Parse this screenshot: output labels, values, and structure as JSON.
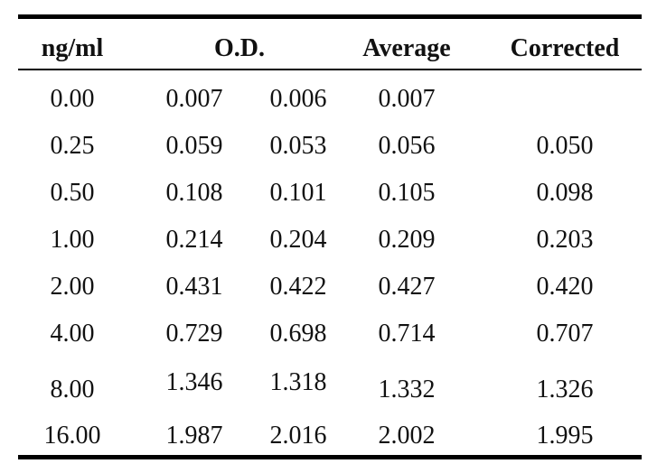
{
  "table": {
    "headers": {
      "ng": "ng/ml",
      "od": "O.D.",
      "avg": "Average",
      "cor": "Corrected"
    },
    "rows": [
      {
        "ng": "0.00",
        "od1": "0.007",
        "od2": "0.006",
        "avg": "0.007",
        "cor": ""
      },
      {
        "ng": "0.25",
        "od1": "0.059",
        "od2": "0.053",
        "avg": "0.056",
        "cor": "0.050"
      },
      {
        "ng": "0.50",
        "od1": "0.108",
        "od2": "0.101",
        "avg": "0.105",
        "cor": "0.098"
      },
      {
        "ng": "1.00",
        "od1": "0.214",
        "od2": "0.204",
        "avg": "0.209",
        "cor": "0.203"
      },
      {
        "ng": "2.00",
        "od1": "0.431",
        "od2": "0.422",
        "avg": "0.427",
        "cor": "0.420"
      },
      {
        "ng": "4.00",
        "od1": "0.729",
        "od2": "0.698",
        "avg": "0.714",
        "cor": "0.707"
      },
      {
        "ng": "8.00",
        "od1": "1.346",
        "od2": "1.318",
        "avg": "1.332",
        "cor": "1.326"
      },
      {
        "ng": "16.00",
        "od1": "1.987",
        "od2": "2.016",
        "avg": "2.002",
        "cor": "1.995"
      }
    ]
  }
}
